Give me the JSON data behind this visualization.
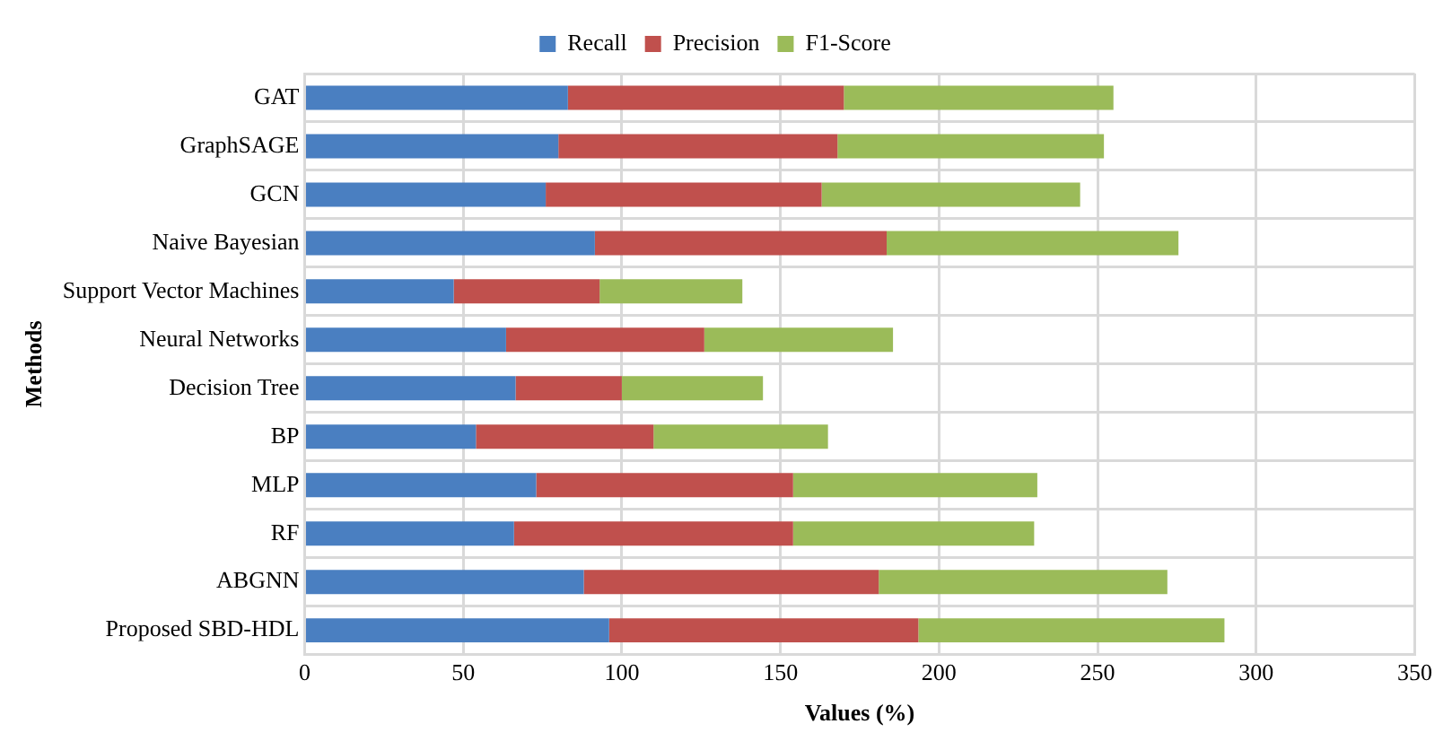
{
  "chart_data": {
    "type": "bar",
    "orientation": "horizontal",
    "stacked": true,
    "categories": [
      "GAT",
      "GraphSAGE",
      "GCN",
      "Naive Bayesian",
      "Support Vector Machines",
      "Neural Networks",
      "Decision Tree",
      "BP",
      "MLP",
      "RF",
      "ABGNN",
      "Proposed SBD-HDL"
    ],
    "series": [
      {
        "name": "Recall",
        "color": "#4a7fc1",
        "values": [
          83,
          80,
          76,
          91.5,
          47,
          63.5,
          66.5,
          54,
          73,
          66,
          88,
          96
        ]
      },
      {
        "name": "Precision",
        "color": "#c0504d",
        "values": [
          87,
          88,
          87,
          92,
          46,
          62.5,
          33.5,
          56,
          81,
          88,
          93,
          97.5
        ]
      },
      {
        "name": "F1-Score",
        "color": "#9bbb59",
        "values": [
          85,
          84,
          81.5,
          92,
          45,
          59.5,
          44.5,
          55,
          77,
          76,
          91,
          96.5
        ]
      }
    ],
    "xlim": [
      0,
      350
    ],
    "xticks": [
      0,
      50,
      100,
      150,
      200,
      250,
      300,
      350
    ],
    "xlabel": "Values (%)",
    "ylabel": "Methods",
    "grid": true,
    "legend": "top"
  }
}
